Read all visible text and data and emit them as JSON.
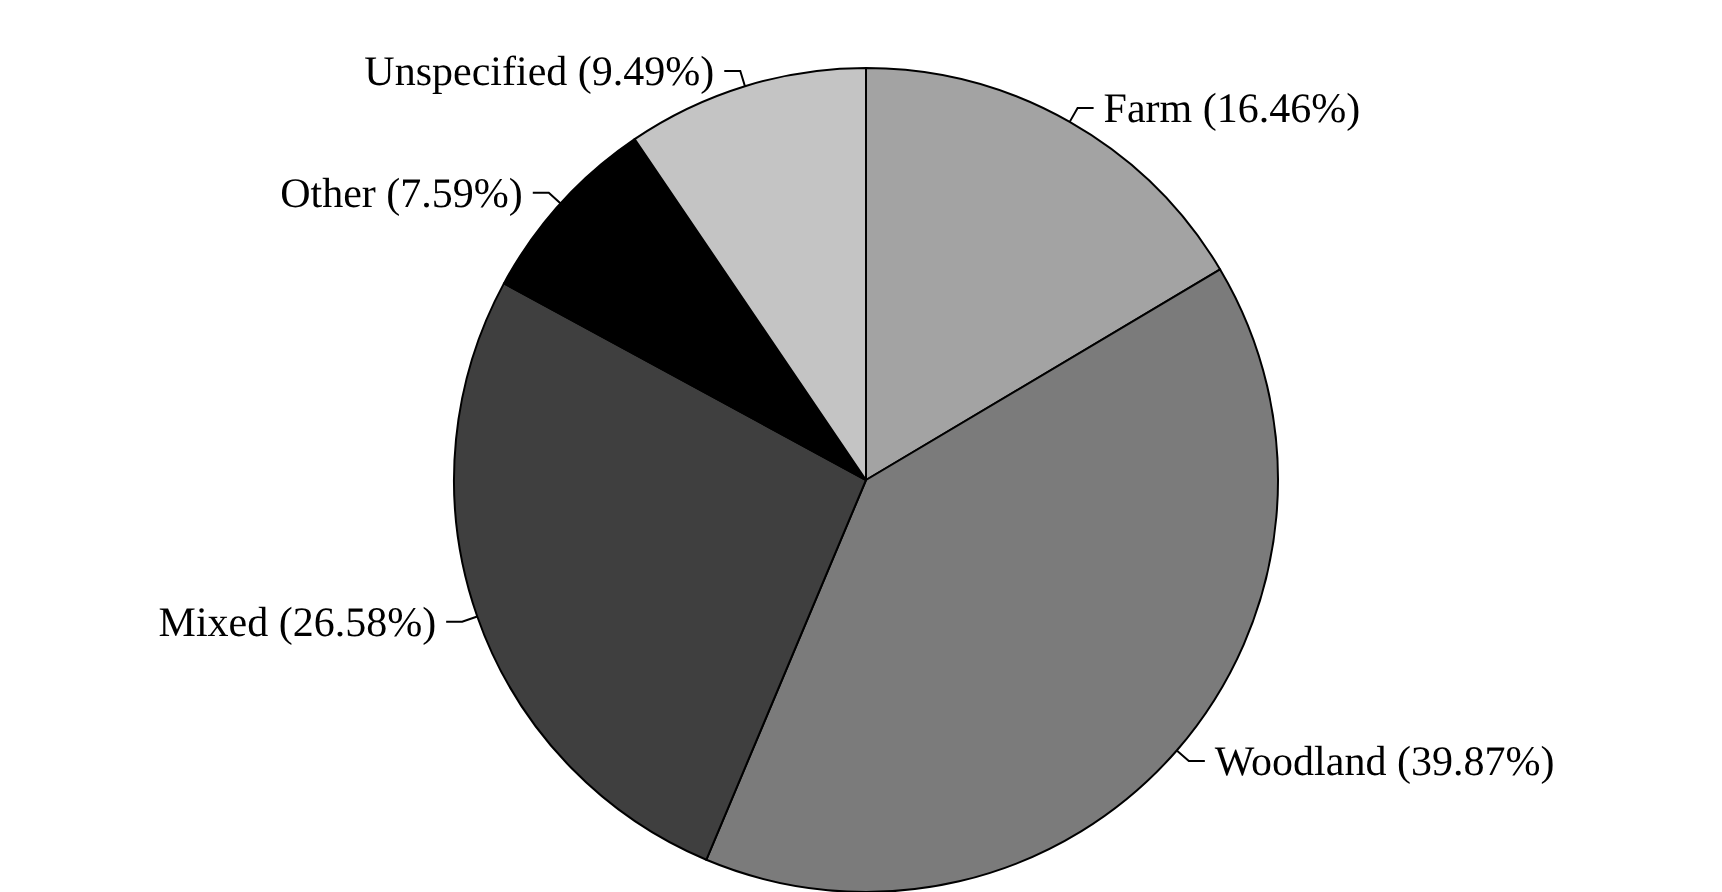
{
  "chart_data": {
    "type": "pie",
    "categories": [
      "Farm",
      "Woodland",
      "Mixed",
      "Other",
      "Unspecified"
    ],
    "values": [
      16.46,
      39.87,
      26.58,
      7.59,
      9.49
    ],
    "value_labels": [
      "(16.46%)",
      "(39.87%)",
      "(26.58%)",
      "(7.59%)",
      "(9.49%)"
    ],
    "colors": [
      "#a3a3a3",
      "#7b7b7b",
      "#3f3f3f",
      "#000000",
      "#c4c4c4"
    ],
    "legend": false
  }
}
